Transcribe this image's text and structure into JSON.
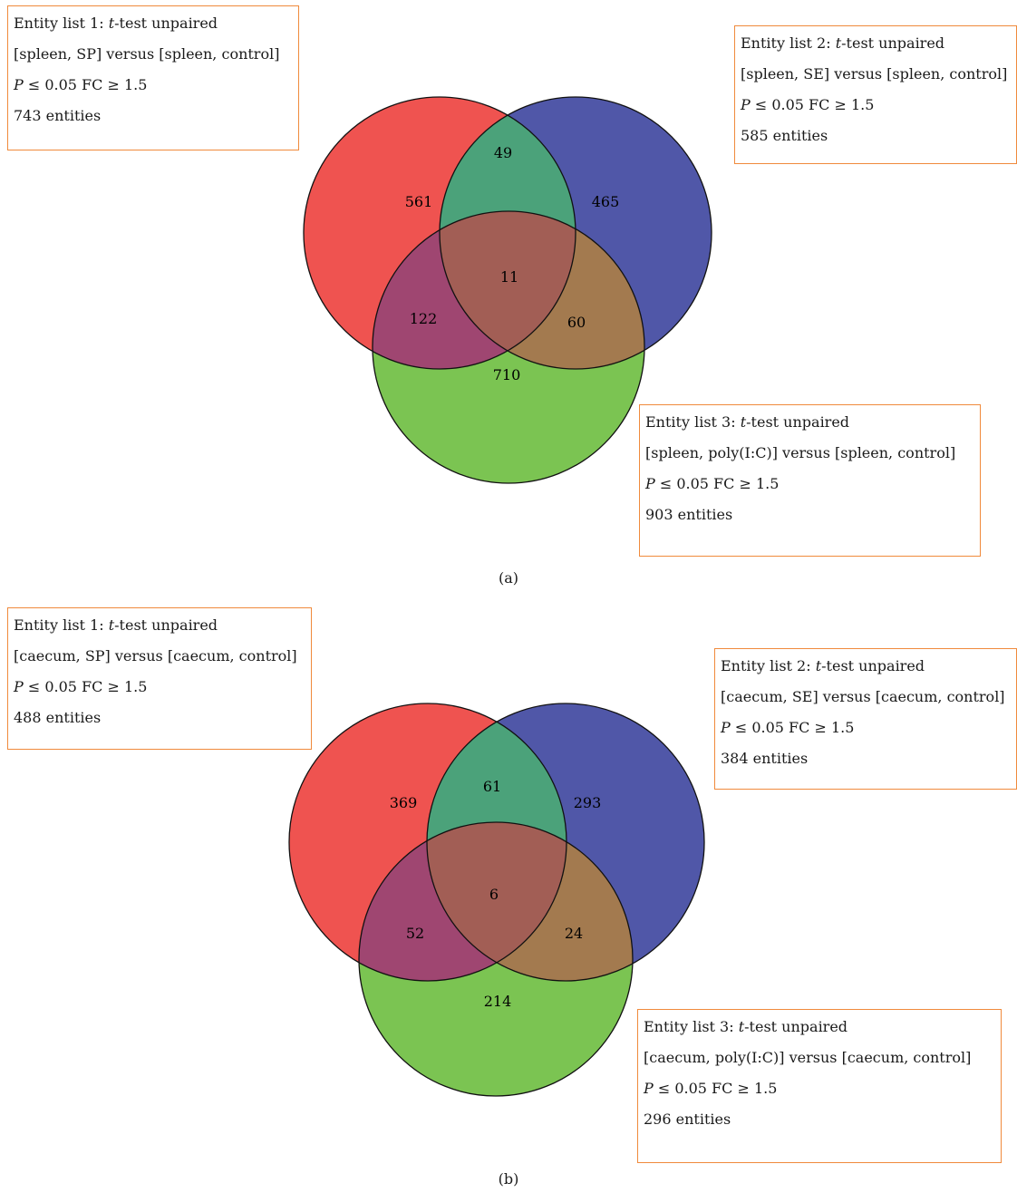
{
  "panels": [
    {
      "caption": "(a)",
      "lists": [
        {
          "lead": "Entity list 1: ",
          "t": "t",
          "test": "-test unpaired",
          "comparison": "[spleen, SP] versus [spleen, control]",
          "p": "P",
          "threshold": " ≤ 0.05 FC ≥ 1.5",
          "count": "743 entities"
        },
        {
          "lead": "Entity list 2: ",
          "t": "t",
          "test": "-test unpaired",
          "comparison": "[spleen, SE] versus [spleen, control]",
          "p": "P",
          "threshold": " ≤ 0.05 FC ≥ 1.5",
          "count": "585 entities"
        },
        {
          "lead": "Entity list 3: ",
          "t": "t",
          "test": "-test unpaired",
          "comparison": "[spleen, poly(I:C)] versus [spleen, control]",
          "p": "P",
          "threshold": " ≤ 0.05 FC ≥ 1.5",
          "count": "903 entities"
        }
      ],
      "regions": {
        "only_1": "561",
        "only_2": "465",
        "only_3": "710",
        "r12": "49",
        "r13": "122",
        "r23": "60",
        "r123": "11"
      }
    },
    {
      "caption": "(b)",
      "lists": [
        {
          "lead": "Entity list 1: ",
          "t": "t",
          "test": "-test unpaired",
          "comparison": "[caecum, SP] versus [caecum, control]",
          "p": "P",
          "threshold": " ≤ 0.05 FC ≥ 1.5",
          "count": "488 entities"
        },
        {
          "lead": "Entity list 2: ",
          "t": "t",
          "test": "-test unpaired",
          "comparison": "[caecum, SE] versus [caecum, control]",
          "p": "P",
          "threshold": " ≤ 0.05 FC ≥ 1.5",
          "count": "384 entities"
        },
        {
          "lead": "Entity list 3: ",
          "t": "t",
          "test": "-test unpaired",
          "comparison": "[caecum, poly(I:C)] versus [caecum, control]",
          "p": "P",
          "threshold": " ≤ 0.05 FC ≥ 1.5",
          "count": "296 entities"
        }
      ],
      "regions": {
        "only_1": "369",
        "only_2": "293",
        "only_3": "214",
        "r12": "61",
        "r13": "52",
        "r23": "24",
        "r123": "6"
      }
    }
  ],
  "colors": {
    "set_1": "#ef5350",
    "set_2": "#5057a8",
    "set_3": "#7bc452",
    "r12": "#4ba27a",
    "r13": "#9f4671",
    "r23": "#a37a4f",
    "r123": "#a25e55",
    "box_border": "#f08a3c"
  }
}
